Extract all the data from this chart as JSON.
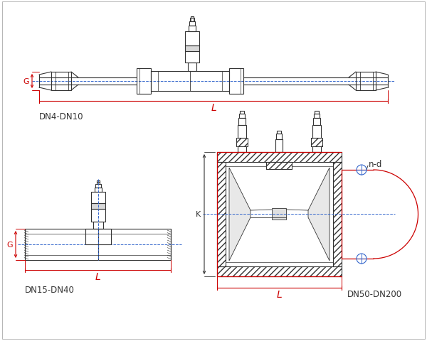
{
  "background_color": "#ffffff",
  "lc": "#333333",
  "gray": "#666666",
  "red": "#cc0000",
  "blue": "#3366cc",
  "title_dn4": "DN4-DN10",
  "title_dn15": "DN15-DN40",
  "title_dn50": "DN50-DN200",
  "label_G": "G",
  "label_L": "L",
  "label_K": "K",
  "label_nd": "n-d"
}
